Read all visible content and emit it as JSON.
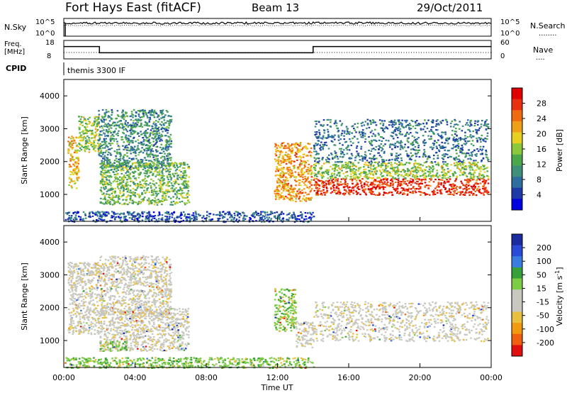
{
  "header": {
    "station": "Fort Hays East (fitACF)",
    "beam": "Beam 13",
    "date": "29/Oct/2011"
  },
  "summary_panels": {
    "nsky": {
      "left_label": "N.Sky",
      "left_ticks": [
        "10^5",
        "10^0"
      ],
      "right_label": "N.Search",
      "right_ticks": [
        "10^5",
        "10^0"
      ],
      "right_key": "........"
    },
    "freq": {
      "left_label_top": "Freq.",
      "left_label_bottom": "[MHz]",
      "left_ticks": [
        "18",
        "8"
      ],
      "right_label": "Nave",
      "right_ticks": [
        "60",
        "0"
      ],
      "right_key": "....",
      "freq_steps": [
        {
          "start_ut": 0.0,
          "end_ut": 2.0,
          "mhz": 15
        },
        {
          "start_ut": 2.0,
          "end_ut": 14.0,
          "mhz": 11
        },
        {
          "start_ut": 14.0,
          "end_ut": 24.0,
          "mhz": 15
        }
      ]
    },
    "cpid": {
      "label": "CPID",
      "value": "themis 3300 IF"
    }
  },
  "colors": {
    "power_scale": [
      "#0000e0",
      "#1e3aa8",
      "#2d6e9e",
      "#3f8f7a",
      "#4aa84a",
      "#8cc83c",
      "#e8d020",
      "#f0a018",
      "#f06a10",
      "#e83010",
      "#e00000"
    ],
    "velocity_scale": [
      "#1a2ca0",
      "#2a4ad8",
      "#3a7de0",
      "#38a038",
      "#7ccc44",
      "#c8c8c0",
      "#c8c8c0",
      "#e8c040",
      "#f09a10",
      "#f06010",
      "#e01010"
    ]
  },
  "chart_data": [
    {
      "type": "heatmap",
      "name": "power",
      "xlabel": "",
      "ylabel": "Slant Range [km]",
      "xlim": [
        0,
        24
      ],
      "ylim": [
        180,
        4500
      ],
      "y_ticks": [
        1000,
        2000,
        3000,
        4000
      ],
      "colorbar": {
        "label": "Power [dB]",
        "range": [
          0,
          32
        ],
        "ticks": [
          "4",
          "8",
          "12",
          "16",
          "20",
          "24",
          "28"
        ]
      },
      "echo_regions": [
        {
          "ut": [
            0.2,
            0.8
          ],
          "range_km": [
            1200,
            2800
          ],
          "level_db": 20
        },
        {
          "ut": [
            0.8,
            2.0
          ],
          "range_km": [
            2300,
            3400
          ],
          "level_db": 16
        },
        {
          "ut": [
            1.9,
            6.0
          ],
          "range_km": [
            1800,
            3600
          ],
          "level_db": 10
        },
        {
          "ut": [
            2.0,
            7.0
          ],
          "range_km": [
            700,
            2000
          ],
          "level_db": 14
        },
        {
          "ut": [
            11.8,
            13.9
          ],
          "range_km": [
            800,
            2600
          ],
          "level_db": 22
        },
        {
          "ut": [
            14.0,
            23.8
          ],
          "range_km": [
            1000,
            1500
          ],
          "level_db": 28
        },
        {
          "ut": [
            14.0,
            23.8
          ],
          "range_km": [
            1500,
            2000
          ],
          "level_db": 16
        },
        {
          "ut": [
            14.0,
            23.8
          ],
          "range_km": [
            2000,
            3300
          ],
          "level_db": 8
        },
        {
          "ut": [
            0.0,
            14.0
          ],
          "range_km": [
            180,
            500
          ],
          "level_db": 6
        }
      ]
    },
    {
      "type": "heatmap",
      "name": "velocity",
      "xlabel": "Time UT",
      "ylabel": "Slant Range [km]",
      "xlim": [
        0,
        24
      ],
      "ylim": [
        180,
        4500
      ],
      "x_ticks": [
        "00:00",
        "04:00",
        "08:00",
        "12:00",
        "16:00",
        "20:00",
        "00:00"
      ],
      "y_ticks": [
        1000,
        2000,
        3000,
        4000
      ],
      "colorbar": {
        "label": "Velocity [m s",
        "label_sup": "-1",
        "label_end": "]",
        "ticks": [
          "200",
          "100",
          "50",
          "15",
          "-15",
          "-50",
          "-100",
          "-200"
        ]
      },
      "echo_regions": [
        {
          "ut": [
            0.2,
            2.0
          ],
          "range_km": [
            1200,
            3400
          ],
          "velocity": 0
        },
        {
          "ut": [
            2.0,
            6.0
          ],
          "range_km": [
            1800,
            3600
          ],
          "velocity": 0
        },
        {
          "ut": [
            2.0,
            7.0
          ],
          "range_km": [
            700,
            2000
          ],
          "velocity": 0
        },
        {
          "ut": [
            2.0,
            3.5
          ],
          "range_km": [
            700,
            1000
          ],
          "velocity": 40
        },
        {
          "ut": [
            11.8,
            13.0
          ],
          "range_km": [
            1300,
            2600
          ],
          "velocity": 40
        },
        {
          "ut": [
            13.0,
            14.0
          ],
          "range_km": [
            800,
            1600
          ],
          "velocity": 0
        },
        {
          "ut": [
            14.0,
            23.8
          ],
          "range_km": [
            1000,
            2200
          ],
          "velocity": 0
        },
        {
          "ut": [
            0.0,
            14.0
          ],
          "range_km": [
            180,
            500
          ],
          "velocity": 30
        }
      ]
    }
  ]
}
